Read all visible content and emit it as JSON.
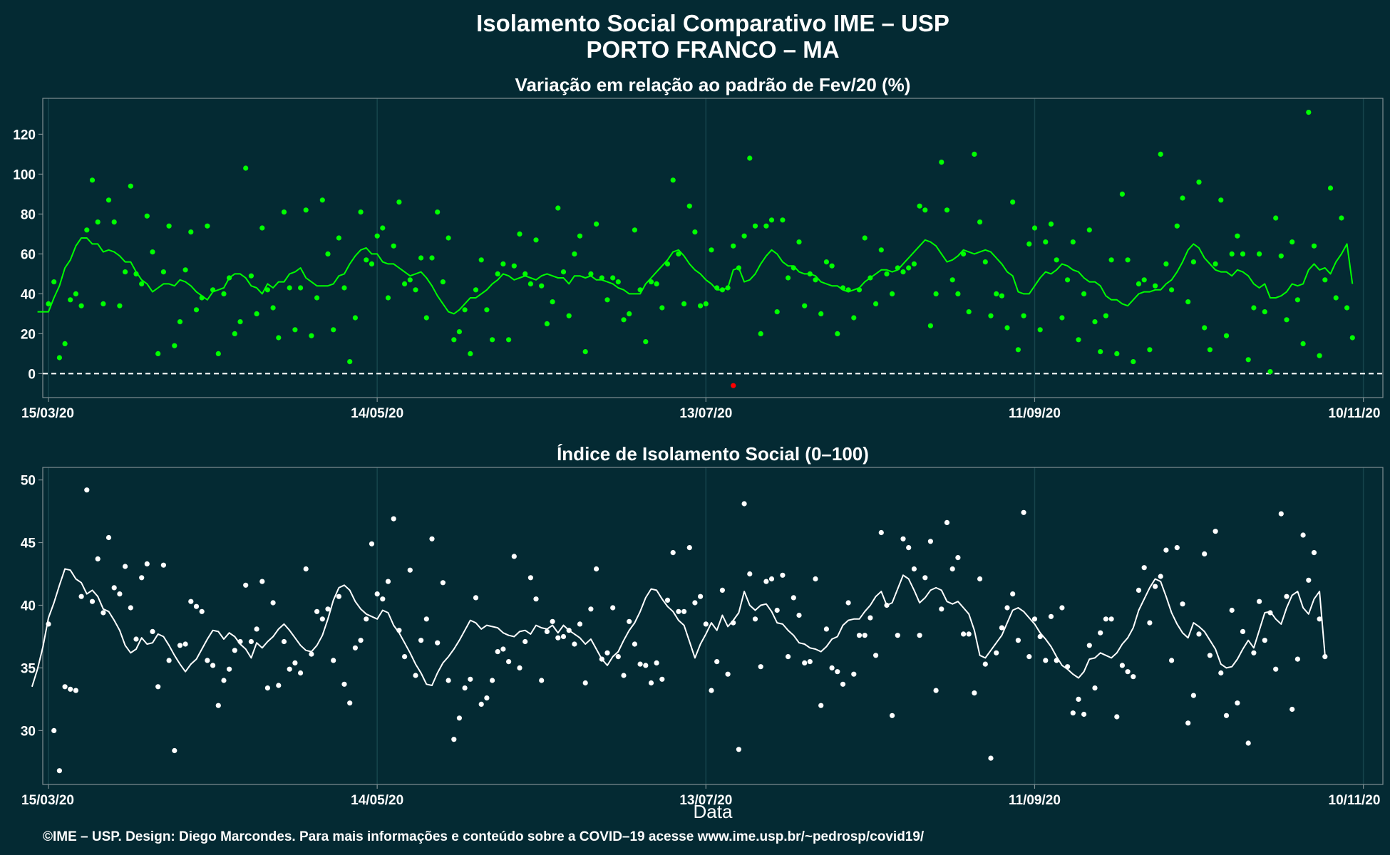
{
  "figure": {
    "title": "Isolamento Social Comparativo IME – USP",
    "subtitle": "PORTO FRANCO – MA",
    "xlabel": "Data",
    "caption": "©IME – USP. Design: Diego Marcondes. Para mais informações e conteúdo sobre a COVID–19 acesse www.ime.usp.br/~pedrosp/covid19/"
  },
  "colors": {
    "background": "#042a33",
    "top_points": "#00ff00",
    "top_line": "#00ff00",
    "highlight": "#ff0000",
    "bottom_points": "#ffffff",
    "bottom_line": "#ffffff",
    "panel_border": "#7f8f93",
    "grid": "#16444c"
  },
  "chart_data": [
    {
      "type": "scatter",
      "title": "Variação em relação ao padrão de Fev/20 (%)",
      "ylabel": "",
      "ylim": [
        -12,
        138
      ],
      "yticks": [
        0,
        20,
        40,
        60,
        80,
        100,
        120
      ],
      "reference_line": 0,
      "x_start": "2020-03-15",
      "x_end": "2020-11-12",
      "x_ticks": [
        "15/03/20",
        "14/05/20",
        "13/07/20",
        "11/09/20",
        "10/11/20"
      ],
      "series": [
        {
          "kind": "points",
          "values": [
            35,
            46,
            8,
            15,
            37,
            40,
            34,
            72,
            97,
            76,
            35,
            87,
            76,
            34,
            51,
            94,
            50,
            45,
            79,
            61,
            10,
            51,
            74,
            14,
            26,
            52,
            71,
            32,
            38,
            74,
            42,
            10,
            40,
            48,
            20,
            26,
            103,
            49,
            30,
            73,
            42,
            33,
            18,
            81,
            43,
            22,
            43,
            82,
            19,
            38,
            87,
            60,
            22,
            68,
            43,
            6,
            28,
            81,
            57,
            55,
            69,
            73,
            38,
            64,
            86,
            45,
            47,
            42,
            58,
            28,
            58,
            81,
            46,
            68,
            17,
            21,
            32,
            10,
            42,
            57,
            32,
            17,
            50,
            55,
            17,
            54,
            70,
            50,
            45,
            67,
            44,
            25,
            36,
            83,
            51,
            29,
            60,
            69,
            11,
            50,
            75,
            48,
            37,
            48,
            46,
            27,
            30,
            72,
            42,
            16,
            46,
            45,
            33,
            55,
            97,
            60,
            35,
            84,
            71,
            34,
            35,
            62,
            43,
            42,
            43,
            64,
            53,
            69,
            108,
            74,
            20,
            74,
            77,
            31,
            77,
            48,
            53,
            66,
            34,
            50,
            47,
            30,
            56,
            54,
            20,
            43,
            42,
            28,
            42,
            68,
            48,
            35,
            62,
            50,
            40,
            53,
            51,
            53,
            55,
            84,
            82,
            24,
            40,
            106,
            82,
            47,
            40,
            60,
            31,
            110,
            76,
            56,
            29,
            40,
            39,
            23,
            86,
            12,
            29,
            65,
            73,
            22,
            66,
            75,
            57,
            28,
            47,
            66,
            17,
            40,
            72,
            26,
            11,
            29,
            57,
            10,
            90,
            57,
            6,
            45,
            47,
            12,
            44,
            110,
            55,
            42,
            74,
            88,
            36,
            56,
            96,
            23,
            12,
            55,
            87,
            19,
            60,
            69,
            60,
            7,
            33,
            60,
            31,
            1,
            78,
            59,
            27,
            66,
            37,
            15,
            131,
            64,
            9,
            47,
            93,
            38,
            78,
            33,
            18
          ],
          "highlight_point": {
            "x": "2020-07-18",
            "y": -6
          }
        },
        {
          "kind": "moving_average",
          "values": [
            31,
            31,
            31,
            38,
            44,
            53,
            57,
            64,
            68,
            68,
            65,
            65,
            61,
            62,
            61,
            59,
            56,
            56,
            51,
            47,
            45,
            41,
            43,
            45,
            45,
            44,
            47,
            46,
            44,
            41,
            39,
            37,
            41,
            42,
            43,
            48,
            50,
            50,
            48,
            44,
            43,
            40,
            45,
            43,
            46,
            46,
            50,
            51,
            53,
            48,
            46,
            44,
            44,
            44,
            45,
            49,
            50,
            55,
            59,
            62,
            63,
            60,
            60,
            56,
            55,
            55,
            53,
            51,
            49,
            50,
            51,
            48,
            44,
            39,
            35,
            31,
            30,
            32,
            35,
            38,
            38,
            40,
            42,
            45,
            47,
            50,
            49,
            47,
            48,
            49,
            48,
            47,
            49,
            50,
            49,
            48,
            48,
            45,
            49,
            49,
            48,
            49,
            47,
            47,
            46,
            45,
            43,
            42,
            40,
            40,
            40,
            45,
            48,
            51,
            54,
            57,
            61,
            62,
            59,
            55,
            52,
            50,
            47,
            45,
            42,
            42,
            43,
            52,
            53,
            46,
            47,
            50,
            55,
            59,
            62,
            60,
            56,
            54,
            54,
            51,
            50,
            50,
            49,
            46,
            45,
            44,
            44,
            42,
            41,
            42,
            43,
            46,
            48,
            50,
            52,
            52,
            51,
            52,
            55,
            58,
            61,
            64,
            67,
            66,
            64,
            60,
            56,
            57,
            59,
            62,
            61,
            60,
            61,
            62,
            61,
            58,
            55,
            51,
            49,
            41,
            40,
            40,
            44,
            48,
            51,
            50,
            52,
            55,
            54,
            52,
            51,
            48,
            46,
            46,
            44,
            39,
            37,
            37,
            35,
            34,
            37,
            40,
            41,
            41,
            42,
            42,
            45,
            47,
            51,
            56,
            62,
            65,
            63,
            58,
            55,
            52,
            51,
            51,
            49,
            52,
            51,
            49,
            45,
            43,
            45,
            38,
            38,
            39,
            41,
            45,
            44,
            45,
            52,
            55,
            52,
            53,
            50,
            56,
            60,
            65,
            45
          ]
        }
      ]
    },
    {
      "type": "scatter",
      "title": "Índice de Isolamento Social (0–100)",
      "ylabel": "",
      "ylim": [
        25.7,
        51.0
      ],
      "yticks": [
        30,
        35,
        40,
        45,
        50
      ],
      "x_start": "2020-03-15",
      "x_end": "2020-11-12",
      "x_ticks": [
        "15/03/20",
        "14/05/20",
        "13/07/20",
        "11/09/20",
        "10/11/20"
      ],
      "series": [
        {
          "kind": "points",
          "values": [
            38.5,
            30.0,
            26.8,
            33.5,
            33.3,
            33.2,
            40.7,
            49.2,
            40.3,
            43.7,
            39.4,
            45.4,
            41.4,
            40.9,
            43.1,
            39.8,
            37.3,
            42.2,
            43.3,
            37.9,
            33.5,
            43.2,
            35.6,
            28.4,
            36.8,
            36.9,
            40.3,
            39.9,
            39.5,
            35.6,
            35.2,
            32.0,
            34.0,
            34.9,
            36.4,
            37.1,
            41.6,
            37.1,
            38.1,
            41.9,
            33.4,
            40.2,
            33.6,
            37.1,
            34.9,
            35.4,
            34.6,
            42.9,
            36.1,
            39.5,
            38.9,
            39.7,
            35.6,
            40.7,
            33.7,
            32.2,
            36.6,
            37.2,
            38.9,
            44.9,
            40.9,
            40.5,
            41.9,
            46.9,
            38.0,
            35.9,
            42.8,
            34.4,
            37.2,
            38.9,
            45.3,
            37.0,
            41.8,
            34.0,
            29.3,
            31.0,
            33.4,
            34.1,
            40.6,
            32.1,
            32.6,
            34.0,
            36.3,
            36.5,
            35.5,
            43.9,
            35.0,
            37.1,
            42.2,
            40.5,
            34.0,
            37.9,
            38.7,
            37.4,
            37.5,
            38.0,
            36.9,
            38.5,
            33.8,
            39.7,
            42.9,
            35.7,
            36.2,
            39.8,
            35.9,
            34.4,
            38.7,
            36.9,
            35.3,
            35.2,
            33.8,
            35.4,
            34.1,
            40.4,
            44.2,
            39.5,
            39.5,
            44.6,
            40.2,
            40.7,
            38.5,
            33.2,
            35.5,
            41.2,
            34.5,
            38.6,
            28.5,
            48.1,
            42.5,
            38.9,
            35.1,
            41.9,
            42.1,
            39.6,
            42.4,
            35.9,
            40.6,
            39.2,
            35.4,
            35.5,
            42.1,
            32.0,
            38.1,
            35.0,
            34.7,
            33.7,
            40.2,
            34.5,
            37.6,
            37.6,
            39.0,
            36.0,
            45.8,
            40.0,
            31.2,
            37.6,
            45.3,
            44.6,
            42.9,
            37.6,
            42.2,
            45.1,
            33.2,
            39.7,
            46.6,
            42.9,
            43.8,
            37.7,
            37.7,
            33.0,
            42.1,
            35.3,
            27.8,
            36.2,
            38.2,
            39.8,
            40.9,
            37.2,
            47.4,
            35.9,
            38.9,
            37.5,
            35.6,
            39.1,
            35.6,
            39.8,
            35.1,
            31.4,
            32.5,
            31.3,
            36.8,
            33.4,
            37.8,
            38.9,
            38.9,
            31.1,
            35.2,
            34.7,
            34.3,
            41.2,
            43.0,
            38.6,
            41.5,
            42.3,
            44.4,
            35.6,
            44.6,
            40.1,
            30.6,
            32.8,
            37.7,
            44.1,
            36.0,
            45.9,
            34.6,
            31.2,
            39.6,
            32.2,
            37.9,
            29.0,
            36.2,
            40.3,
            37.2,
            39.4,
            34.9,
            47.3,
            40.7,
            31.7,
            35.7,
            45.6,
            42.0,
            44.2,
            38.9,
            35.9
          ]
        },
        {
          "kind": "moving_average",
          "values": [
            33.5,
            34.9,
            36.7,
            39.0,
            40.2,
            41.6,
            42.9,
            42.8,
            42.1,
            41.8,
            40.9,
            41.2,
            40.7,
            39.7,
            39.5,
            38.8,
            38.0,
            36.8,
            36.2,
            36.5,
            37.4,
            36.9,
            37.0,
            37.7,
            37.5,
            36.8,
            36.0,
            35.3,
            34.7,
            35.3,
            35.7,
            36.5,
            37.3,
            38.0,
            37.9,
            37.3,
            37.8,
            37.5,
            36.9,
            36.5,
            35.8,
            37.0,
            36.6,
            37.1,
            37.5,
            38.1,
            38.5,
            38.0,
            37.4,
            36.8,
            36.4,
            36.3,
            36.8,
            37.6,
            38.9,
            40.4,
            41.4,
            41.6,
            41.2,
            40.3,
            39.7,
            39.3,
            39.1,
            38.9,
            39.6,
            39.4,
            38.4,
            37.8,
            37.0,
            36.2,
            35.3,
            34.6,
            33.7,
            33.6,
            34.6,
            35.4,
            35.9,
            36.5,
            37.2,
            38.0,
            38.8,
            38.6,
            38.1,
            38.4,
            38.3,
            38.2,
            37.8,
            37.6,
            37.5,
            37.9,
            38.0,
            37.7,
            38.4,
            38.2,
            38.1,
            38.4,
            37.8,
            38.4,
            38.0,
            37.7,
            37.4,
            36.9,
            37.3,
            36.5,
            35.7,
            35.2,
            35.9,
            36.3,
            37.2,
            38.0,
            38.6,
            39.5,
            40.6,
            41.3,
            41.2,
            40.5,
            39.9,
            39.5,
            38.8,
            38.4,
            37.1,
            35.8,
            36.9,
            37.7,
            38.6,
            38.0,
            39.2,
            38.3,
            38.8,
            39.4,
            41.1,
            40.0,
            39.6,
            40.0,
            40.1,
            39.5,
            38.6,
            38.5,
            38.0,
            37.6,
            37.0,
            36.9,
            36.6,
            36.5,
            36.3,
            36.7,
            37.3,
            37.5,
            38.4,
            38.8,
            38.9,
            38.9,
            39.5,
            40.0,
            40.7,
            41.1,
            40.0,
            40.2,
            41.3,
            42.4,
            42.1,
            41.2,
            40.2,
            40.6,
            41.2,
            41.4,
            41.2,
            40.3,
            40.1,
            40.3,
            39.8,
            39.3,
            38.0,
            36.0,
            35.8,
            36.4,
            37.0,
            37.6,
            38.6,
            39.6,
            39.8,
            39.5,
            39.0,
            38.5,
            37.8,
            37.3,
            36.7,
            35.9,
            35.2,
            34.9,
            34.5,
            34.2,
            34.7,
            35.7,
            35.8,
            36.2,
            36.0,
            35.8,
            36.2,
            36.9,
            37.4,
            38.2,
            39.6,
            40.5,
            41.4,
            42.1,
            41.9,
            40.7,
            39.4,
            38.5,
            37.8,
            37.4,
            38.6,
            38.3,
            37.9,
            37.2,
            36.5,
            35.3,
            35.0,
            35.1,
            35.7,
            36.5,
            37.2,
            36.6,
            38.0,
            39.4,
            39.5,
            38.9,
            38.5,
            39.8,
            40.8,
            41.1,
            39.8,
            39.3,
            40.5,
            41.1,
            36.0
          ]
        }
      ]
    }
  ]
}
